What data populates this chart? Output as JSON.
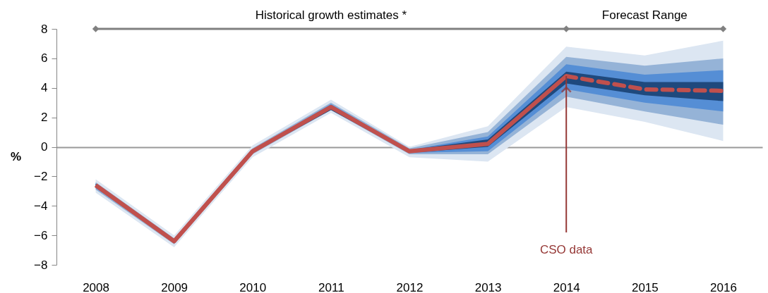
{
  "chart_data": {
    "type": "line",
    "ylabel": "%",
    "categories": [
      "2008",
      "2009",
      "2010",
      "2011",
      "2012",
      "2013",
      "2014",
      "2015",
      "2016"
    ],
    "ylim": [
      -8,
      8
    ],
    "yticks": [
      -8,
      -6,
      -4,
      -2,
      0,
      2,
      4,
      6,
      8
    ],
    "series": [
      {
        "color": "#dce6f2",
        "values": [
          null,
          null,
          null,
          null,
          null,
          null,
          null,
          null,
          null
        ],
        "lower": [
          -3.1,
          -6.8,
          -0.7,
          2.3,
          -0.7,
          -1.0,
          2.7,
          1.7,
          0.4
        ],
        "upper": [
          -2.2,
          -6.0,
          0.1,
          3.2,
          0.0,
          1.4,
          6.8,
          6.2,
          7.2
        ]
      },
      {
        "color": "#95b3d7",
        "values": [
          null,
          null,
          null,
          null,
          null,
          null,
          null,
          null,
          null
        ],
        "lower": [
          -2.9,
          -6.6,
          -0.5,
          2.5,
          -0.5,
          -0.5,
          3.4,
          2.4,
          1.5
        ],
        "upper": [
          -2.4,
          -6.2,
          -0.1,
          3.0,
          -0.1,
          1.0,
          6.1,
          5.5,
          6.0
        ]
      },
      {
        "color": "#558ed5",
        "values": [
          null,
          null,
          null,
          null,
          null,
          null,
          null,
          null,
          null
        ],
        "lower": [
          -2.8,
          -6.5,
          -0.4,
          2.6,
          -0.4,
          -0.3,
          3.9,
          3.0,
          2.4
        ],
        "upper": [
          -2.5,
          -6.3,
          -0.2,
          2.9,
          -0.2,
          0.7,
          5.6,
          4.9,
          5.2
        ]
      },
      {
        "color": "#1f497d",
        "values": [
          null,
          null,
          null,
          null,
          null,
          null,
          null,
          null,
          null
        ],
        "lower": [
          -2.7,
          -6.5,
          -0.4,
          2.5,
          -0.4,
          0.0,
          4.3,
          3.5,
          3.1
        ],
        "upper": [
          -2.5,
          -6.3,
          -0.2,
          2.8,
          -0.2,
          0.5,
          5.1,
          4.4,
          4.4
        ]
      },
      {
        "color": "#c0504d",
        "line_style": "solid",
        "values": [
          -2.6,
          -6.4,
          -0.3,
          2.7,
          -0.3,
          0.2,
          4.8,
          null,
          null
        ]
      },
      {
        "color": "#c0504d",
        "line_style": "dashed",
        "values": [
          null,
          null,
          null,
          null,
          null,
          null,
          4.8,
          3.9,
          3.8
        ]
      },
      {
        "color": "#808080",
        "line_style": "solid",
        "marker": "diamond",
        "values": [
          8,
          null,
          null,
          null,
          null,
          null,
          8,
          null,
          8
        ]
      }
    ],
    "annotations": [
      "Historical growth estimates *",
      "Forecast Range",
      {
        "text": "CSO data",
        "x": "2014",
        "y": 4.8
      }
    ]
  }
}
